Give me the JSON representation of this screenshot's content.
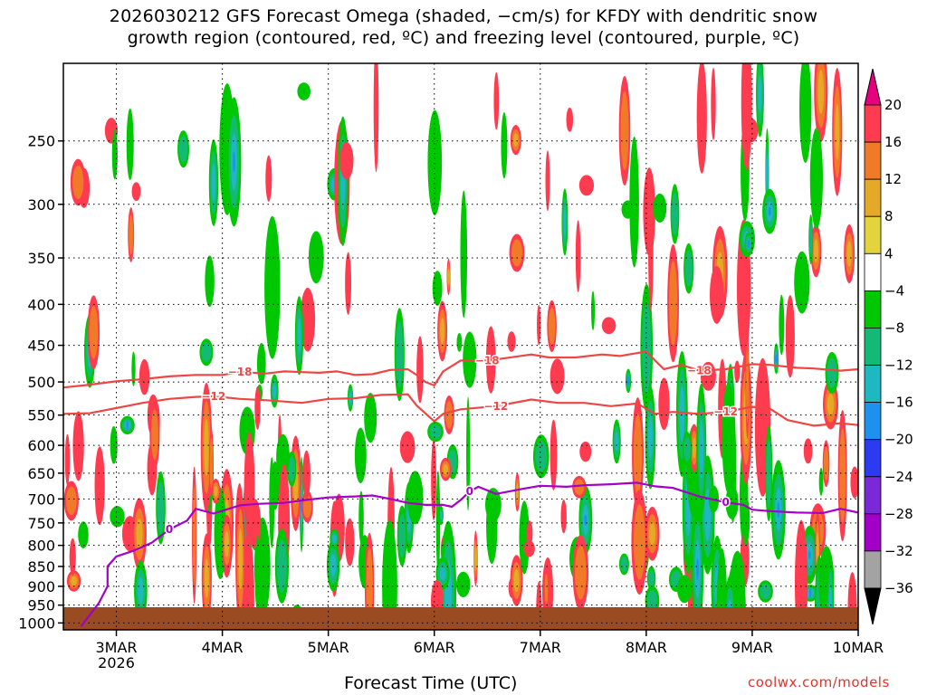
{
  "title_line1": "2026030212 GFS Forecast Omega (shaded, −cm/s) for KFDY with dendritic snow",
  "title_line2": "growth region (contoured, red, ºC) and freezing level (contoured, purple, ºC)",
  "credit": "coolwx.com/models",
  "chart_data": {
    "type": "heatmap",
    "title": "2026030212 GFS Forecast Omega (shaded, −cm/s) for KFDY with dendritic snow growth region (contoured, red, ºC) and freezing level (contoured, purple, ºC)",
    "xlabel": "Forecast Time (UTC)",
    "ylabel": "",
    "x_ticks": [
      {
        "label": "3MAR",
        "sub": "2026",
        "hours": 12
      },
      {
        "label": "4MAR",
        "hours": 36
      },
      {
        "label": "5MAR",
        "hours": 60
      },
      {
        "label": "6MAR",
        "hours": 84
      },
      {
        "label": "7MAR",
        "hours": 108
      },
      {
        "label": "8MAR",
        "hours": 132
      },
      {
        "label": "9MAR",
        "hours": 156
      },
      {
        "label": "10MAR",
        "hours": 180
      }
    ],
    "xlim_hours": [
      0,
      180
    ],
    "y_ticks": [
      "250",
      "300",
      "350",
      "400",
      "450",
      "500",
      "550",
      "600",
      "650",
      "700",
      "750",
      "800",
      "850",
      "900",
      "950",
      "1000"
    ],
    "ylim": [
      1020,
      200
    ],
    "y_scale": "log-pressure",
    "grid": true,
    "colorbar": {
      "labels": [
        "20",
        "16",
        "12",
        "8",
        "4",
        "−4",
        "−8",
        "−12",
        "−16",
        "−20",
        "−24",
        "−28",
        "−32",
        "−36"
      ],
      "colors": [
        "#ff3b4f",
        "#f07a28",
        "#e4a926",
        "#e3d33c",
        "#ffffff",
        "#00c800",
        "#13ba75",
        "#1fb8c0",
        "#1e90ef",
        "#2a3bf0",
        "#7a28d8",
        "#a200c8",
        "#a3a3a3"
      ],
      "top_arrow_color": "#e6007e",
      "bottom_arrow_color": "#000000"
    },
    "contours": [
      {
        "label": "−18",
        "color": "#ee4545",
        "points": [
          [
            0,
            508
          ],
          [
            6,
            504
          ],
          [
            12,
            499
          ],
          [
            18,
            496
          ],
          [
            24,
            492
          ],
          [
            30,
            490
          ],
          [
            36,
            490
          ],
          [
            40,
            486
          ],
          [
            46,
            488
          ],
          [
            50,
            485
          ],
          [
            54,
            486
          ],
          [
            58,
            487
          ],
          [
            62,
            485
          ],
          [
            66,
            490
          ],
          [
            70,
            489
          ],
          [
            74,
            483
          ],
          [
            78,
            482
          ],
          [
            80,
            490
          ],
          [
            82,
            500
          ],
          [
            84,
            505
          ],
          [
            86,
            485
          ],
          [
            90,
            470
          ],
          [
            96,
            470
          ],
          [
            100,
            467
          ],
          [
            106,
            462
          ],
          [
            110,
            466
          ],
          [
            116,
            466
          ],
          [
            122,
            462
          ],
          [
            126,
            464
          ],
          [
            132,
            458
          ],
          [
            134,
            470
          ],
          [
            136,
            482
          ],
          [
            140,
            476
          ],
          [
            144,
            484
          ],
          [
            150,
            482
          ],
          [
            156,
            475
          ],
          [
            160,
            476
          ],
          [
            166,
            480
          ],
          [
            170,
            481
          ],
          [
            176,
            484
          ],
          [
            180,
            482
          ]
        ]
      },
      {
        "label": "−12",
        "color": "#ee4545",
        "points": [
          [
            0,
            548
          ],
          [
            6,
            547
          ],
          [
            12,
            539
          ],
          [
            18,
            531
          ],
          [
            24,
            525
          ],
          [
            30,
            522
          ],
          [
            34,
            521
          ],
          [
            40,
            525
          ],
          [
            46,
            527
          ],
          [
            50,
            529
          ],
          [
            54,
            531
          ],
          [
            60,
            525
          ],
          [
            66,
            524
          ],
          [
            72,
            519
          ],
          [
            78,
            518
          ],
          [
            80,
            535
          ],
          [
            84,
            560
          ],
          [
            86,
            548
          ],
          [
            90,
            541
          ],
          [
            98,
            536
          ],
          [
            106,
            526
          ],
          [
            112,
            531
          ],
          [
            118,
            531
          ],
          [
            124,
            536
          ],
          [
            130,
            532
          ],
          [
            134,
            548
          ],
          [
            138,
            545
          ],
          [
            144,
            548
          ],
          [
            150,
            545
          ],
          [
            156,
            537
          ],
          [
            160,
            540
          ],
          [
            164,
            558
          ],
          [
            170,
            567
          ],
          [
            176,
            563
          ],
          [
            180,
            566
          ]
        ]
      },
      {
        "label": "0",
        "color": "#a400c8",
        "points": [
          [
            4,
            1010
          ],
          [
            8,
            945
          ],
          [
            10,
            900
          ],
          [
            10,
            850
          ],
          [
            12,
            826
          ],
          [
            16,
            812
          ],
          [
            20,
            794
          ],
          [
            24,
            764
          ],
          [
            28,
            745
          ],
          [
            30,
            720
          ],
          [
            34,
            730
          ],
          [
            40,
            713
          ],
          [
            44,
            710
          ],
          [
            50,
            708
          ],
          [
            54,
            703
          ],
          [
            60,
            697
          ],
          [
            66,
            695
          ],
          [
            70,
            693
          ],
          [
            74,
            700
          ],
          [
            78,
            708
          ],
          [
            82,
            712
          ],
          [
            86,
            712
          ],
          [
            88,
            716
          ],
          [
            90,
            702
          ],
          [
            92,
            685
          ],
          [
            94,
            676
          ],
          [
            98,
            690
          ],
          [
            104,
            680
          ],
          [
            108,
            674
          ],
          [
            114,
            676
          ],
          [
            118,
            673
          ],
          [
            124,
            671
          ],
          [
            130,
            668
          ],
          [
            134,
            675
          ],
          [
            138,
            678
          ],
          [
            144,
            695
          ],
          [
            150,
            707
          ],
          [
            154,
            712
          ],
          [
            156,
            722
          ],
          [
            160,
            725
          ],
          [
            166,
            728
          ],
          [
            172,
            729
          ],
          [
            176,
            720
          ],
          [
            180,
            728
          ]
        ]
      }
    ]
  }
}
